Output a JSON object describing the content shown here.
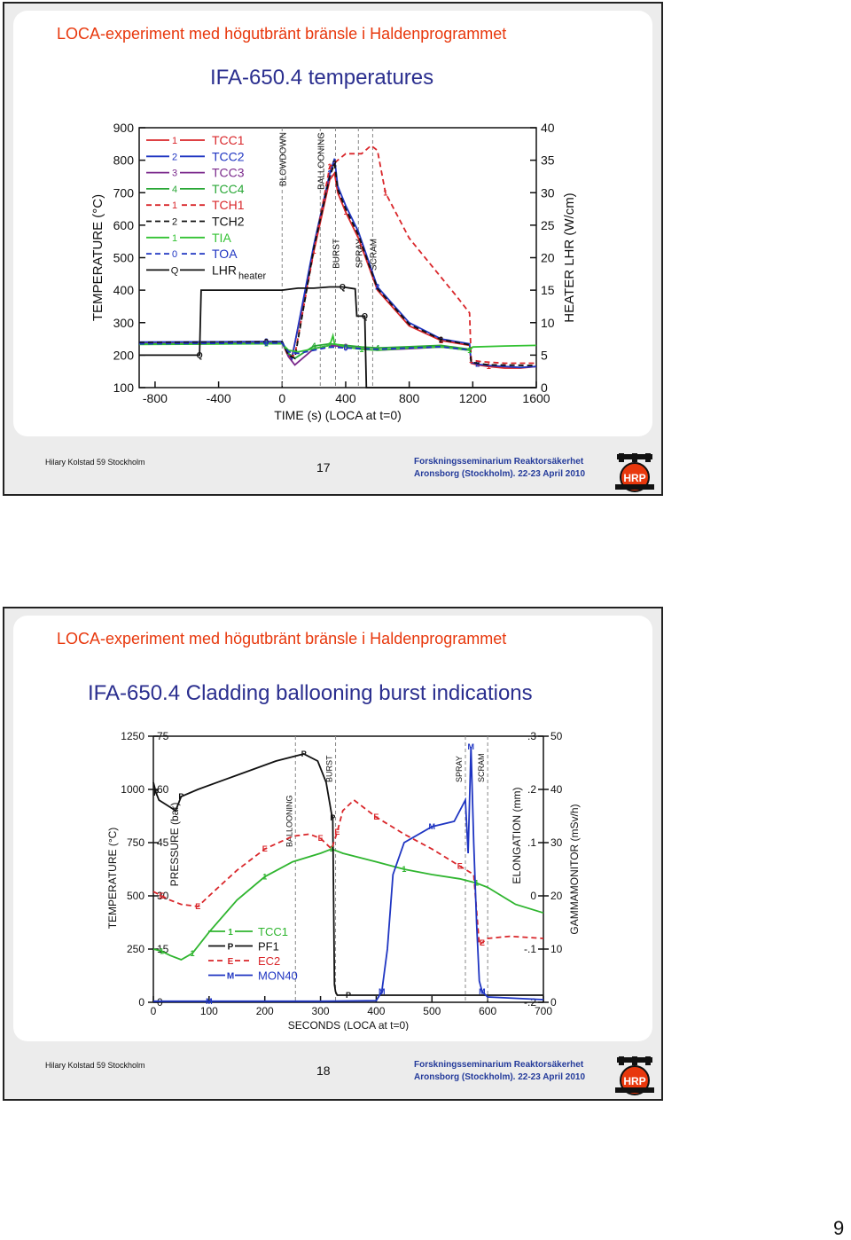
{
  "page_number": "9",
  "slides": [
    {
      "heading": "LOCA-experiment med högutbränt bränsle i Haldenprogrammet",
      "subtitle": "IFA-650.4 temperatures",
      "footer_left": "Hilary Kolstad 59 Stockholm",
      "slide_number": "17",
      "footer_right_1": "Forskningsseminarium Reaktorsäkerhet",
      "footer_right_2": "Aronsborg (Stockholm). 22-23 April 2010",
      "logo_text": "HRP"
    },
    {
      "heading": "LOCA-experiment med högutbränt bränsle i Haldenprogrammet",
      "subtitle": "IFA-650.4 Cladding ballooning burst indications",
      "footer_left": "Hilary Kolstad 59 Stockholm",
      "slide_number": "18",
      "footer_right_1": "Forskningsseminarium Reaktorsäkerhet",
      "footer_right_2": "Aronsborg (Stockholm). 22-23 April 2010",
      "logo_text": "HRP"
    }
  ],
  "chart_data": [
    {
      "type": "line",
      "title": "IFA-650.4 temperatures",
      "xlabel": "TIME (s) (LOCA at t=0)",
      "ylabel": "TEMPERATURE (°C)",
      "y2label": "HEATER LHR (W/cm)",
      "xlim": [
        -900,
        1600
      ],
      "ylim": [
        100,
        900
      ],
      "y2lim": [
        0,
        40
      ],
      "xticks": [
        -800,
        -400,
        0,
        400,
        800,
        1200,
        1600
      ],
      "yticks": [
        100,
        200,
        300,
        400,
        500,
        600,
        700,
        800,
        900
      ],
      "y2ticks": [
        0,
        5,
        10,
        15,
        20,
        25,
        30,
        35,
        40
      ],
      "annotations": [
        {
          "text": "BLOWDOWN",
          "x": 0
        },
        {
          "text": "BALLOONING",
          "x": 240
        },
        {
          "text": "BURST",
          "x": 336
        },
        {
          "text": "SPRAY",
          "x": 480
        },
        {
          "text": "SCRAM",
          "x": 570
        }
      ],
      "series": [
        {
          "name": "TCC1",
          "marker": "1",
          "color": "#d9262a",
          "dash": "",
          "axis": "left",
          "x": [
            -900,
            -100,
            0,
            40,
            60,
            200,
            300,
            330,
            350,
            400,
            480,
            600,
            800,
            1000,
            1180,
            1190,
            1230,
            1300,
            1400,
            1500,
            1600
          ],
          "y": [
            238,
            240,
            240,
            200,
            190,
            520,
            740,
            760,
            700,
            640,
            560,
            400,
            290,
            245,
            230,
            175,
            170,
            165,
            160,
            160,
            165
          ]
        },
        {
          "name": "TCC2",
          "marker": "2",
          "color": "#1f35c2",
          "dash": "",
          "axis": "left",
          "x": [
            -900,
            -100,
            0,
            40,
            60,
            200,
            300,
            330,
            350,
            400,
            480,
            600,
            800,
            1000,
            1180,
            1190,
            1230,
            1300,
            1400,
            1500,
            1600
          ],
          "y": [
            240,
            242,
            242,
            200,
            185,
            540,
            760,
            805,
            720,
            660,
            580,
            410,
            300,
            250,
            235,
            178,
            172,
            168,
            165,
            162,
            165
          ]
        },
        {
          "name": "TCC3",
          "marker": "3",
          "color": "#7b2a8c",
          "dash": "",
          "axis": "left",
          "x": [
            -900,
            -100,
            0,
            40,
            80,
            200,
            300,
            400,
            500,
            600,
            800,
            1000,
            1180
          ],
          "y": [
            236,
            238,
            238,
            195,
            170,
            220,
            230,
            225,
            220,
            215,
            220,
            225,
            215
          ]
        },
        {
          "name": "TCC4",
          "marker": "4",
          "color": "#2aa837",
          "dash": "",
          "axis": "left",
          "x": [
            -900,
            -100,
            0,
            40,
            80,
            200,
            300,
            400,
            500,
            600,
            800,
            1000,
            1180
          ],
          "y": [
            234,
            236,
            236,
            205,
            190,
            228,
            235,
            230,
            225,
            222,
            226,
            230,
            218
          ]
        },
        {
          "name": "TCH1",
          "marker": "1",
          "color": "#d9262a",
          "dash": "6,4",
          "axis": "left",
          "x": [
            -900,
            -100,
            0,
            40,
            80,
            200,
            300,
            400,
            500,
            560,
            600,
            650,
            800,
            1000,
            1100,
            1180,
            1190,
            1250,
            1400,
            1600
          ],
          "y": [
            238,
            240,
            240,
            195,
            200,
            520,
            780,
            820,
            820,
            845,
            830,
            700,
            560,
            440,
            380,
            330,
            185,
            180,
            175,
            175
          ]
        },
        {
          "name": "TCH2",
          "marker": "2",
          "color": "#111111",
          "dash": "6,4",
          "axis": "left",
          "x": [
            -900,
            -100,
            0,
            40,
            80,
            200,
            300,
            330,
            350,
            400,
            480,
            600,
            800,
            1000,
            1180,
            1190,
            1300,
            1600
          ],
          "y": [
            239,
            241,
            241,
            200,
            190,
            530,
            750,
            790,
            710,
            650,
            570,
            405,
            295,
            248,
            232,
            178,
            170,
            168
          ]
        },
        {
          "name": "TIA",
          "marker": "1",
          "color": "#33c233",
          "dash": "",
          "axis": "left",
          "x": [
            -900,
            -100,
            0,
            40,
            100,
            300,
            320,
            330,
            400,
            500,
            600,
            800,
            1000,
            1180,
            1200,
            1400,
            1600
          ],
          "y": [
            233,
            235,
            235,
            215,
            210,
            230,
            260,
            235,
            225,
            218,
            215,
            222,
            225,
            215,
            225,
            228,
            230
          ]
        },
        {
          "name": "TOA",
          "marker": "0",
          "color": "#1f35c2",
          "dash": "6,4",
          "axis": "left",
          "x": [
            -900,
            -100,
            0,
            40,
            100,
            300,
            400,
            500,
            600,
            800,
            1000,
            1180
          ],
          "y": [
            235,
            237,
            237,
            210,
            205,
            225,
            222,
            220,
            218,
            222,
            226,
            216
          ]
        },
        {
          "name": "LHR",
          "subscript": "heater",
          "marker": "Q",
          "color": "#111111",
          "dash": "",
          "axis": "right",
          "x": [
            -900,
            -520,
            -510,
            0,
            100,
            200,
            300,
            380,
            460,
            470,
            480,
            490,
            500,
            520,
            530,
            1600
          ],
          "y2": [
            5,
            5,
            15,
            15,
            15.3,
            15.3,
            15.5,
            15.5,
            15.2,
            11,
            11,
            11,
            11,
            11,
            0,
            0
          ]
        }
      ]
    },
    {
      "type": "line",
      "title": "IFA-650.4 Cladding ballooning burst indications",
      "xlabel": "SECONDS (LOCA at t=0)",
      "ylabel": "TEMPERATURE (°C)",
      "y2label": "PRESSURE (bar)",
      "y3label": "ELONGATION (mm)",
      "y4label": "GAMMAMONITOR (mSv/h)",
      "xlim": [
        0,
        700
      ],
      "ylim": [
        0,
        1250
      ],
      "y2lim": [
        0,
        75
      ],
      "y3lim": [
        -0.2,
        0.3
      ],
      "y4lim": [
        0,
        50
      ],
      "xticks": [
        0,
        100,
        200,
        300,
        400,
        500,
        600,
        700
      ],
      "yticks": [
        0,
        250,
        500,
        750,
        1000,
        1250
      ],
      "y2ticks": [
        0,
        15,
        30,
        45,
        60,
        75
      ],
      "y3ticks": [
        -0.2,
        -0.1,
        0,
        0.1,
        0.2,
        0.3
      ],
      "y3ticklabels": [
        "-.2",
        "-.1",
        "0",
        ".1",
        ".2",
        ".3"
      ],
      "y4ticks": [
        0,
        10,
        20,
        30,
        40,
        50
      ],
      "annotations": [
        {
          "text": "BALLOONING",
          "x": 255
        },
        {
          "text": "BURST",
          "x": 327
        },
        {
          "text": "SPRAY",
          "x": 560
        },
        {
          "text": "SCRAM",
          "x": 600
        }
      ],
      "series": [
        {
          "name": "TCC1",
          "marker": "1",
          "color": "#2fb52f",
          "dash": "",
          "axis": "temperature",
          "x": [
            0,
            15,
            30,
            50,
            70,
            100,
            150,
            200,
            250,
            300,
            320,
            340,
            400,
            450,
            500,
            550,
            580,
            600,
            650,
            700
          ],
          "y": [
            250,
            240,
            220,
            200,
            230,
            330,
            480,
            590,
            660,
            700,
            720,
            700,
            660,
            625,
            600,
            580,
            560,
            540,
            460,
            420
          ]
        },
        {
          "name": "PF1",
          "marker": "P",
          "color": "#111111",
          "dash": "",
          "axis": "pressure",
          "x": [
            0,
            5,
            10,
            30,
            40,
            50,
            80,
            150,
            220,
            270,
            295,
            310,
            320,
            322,
            325,
            327,
            330,
            350,
            400,
            500,
            600,
            700
          ],
          "y2": [
            62,
            59,
            57,
            55,
            54,
            58,
            60,
            64,
            68,
            70,
            68,
            62,
            53,
            52,
            5,
            3,
            2,
            2,
            2,
            2,
            2,
            2
          ]
        },
        {
          "name": "EC2",
          "marker": "E",
          "color": "#d9262a",
          "dash": "6,4",
          "axis": "temperature",
          "x": [
            0,
            15,
            30,
            50,
            80,
            100,
            150,
            200,
            250,
            280,
            300,
            320,
            325,
            330,
            340,
            360,
            400,
            450,
            500,
            550,
            575,
            585,
            590,
            600,
            640,
            700
          ],
          "y": [
            520,
            500,
            480,
            460,
            450,
            500,
            620,
            720,
            780,
            790,
            770,
            720,
            760,
            800,
            900,
            950,
            870,
            790,
            720,
            640,
            600,
            270,
            280,
            300,
            310,
            300
          ]
        },
        {
          "name": "MON40",
          "marker": "M",
          "color": "#1f35c2",
          "dash": "",
          "axis": "gamma",
          "x": [
            0,
            100,
            200,
            300,
            400,
            410,
            420,
            430,
            450,
            500,
            540,
            560,
            565,
            570,
            575,
            580,
            585,
            590,
            600,
            700
          ],
          "y4": [
            0.2,
            0.2,
            0.2,
            0.2,
            0.3,
            2,
            10,
            24,
            30,
            33,
            34,
            38,
            28,
            48,
            30,
            15,
            4,
            2,
            1,
            0.5
          ]
        }
      ]
    }
  ]
}
